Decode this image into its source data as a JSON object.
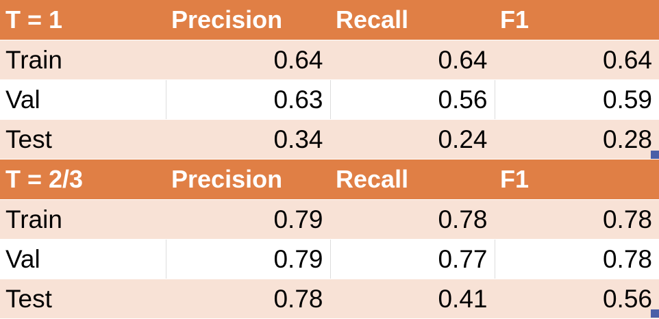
{
  "tables": [
    {
      "title": "T = 1",
      "headers": [
        "Precision",
        "Recall",
        "F1"
      ],
      "rows": [
        {
          "label": "Train",
          "values": [
            "0.64",
            "0.64",
            "0.64"
          ]
        },
        {
          "label": "Val",
          "values": [
            "0.63",
            "0.56",
            "0.59"
          ]
        },
        {
          "label": "Test",
          "values": [
            "0.34",
            "0.24",
            "0.28"
          ]
        }
      ]
    },
    {
      "title": "T = 2/3",
      "headers": [
        "Precision",
        "Recall",
        "F1"
      ],
      "rows": [
        {
          "label": "Train",
          "values": [
            "0.79",
            "0.78",
            "0.78"
          ]
        },
        {
          "label": "Val",
          "values": [
            "0.79",
            "0.77",
            "0.78"
          ]
        },
        {
          "label": "Test",
          "values": [
            "0.78",
            "0.41",
            "0.56"
          ]
        }
      ]
    }
  ],
  "colors": {
    "header_fill": "#e07f45",
    "header_text": "#ffffff",
    "band_fill": "#f8e2d6",
    "plain_fill": "#ffffff",
    "fill_handle": "#4a5fa8"
  }
}
